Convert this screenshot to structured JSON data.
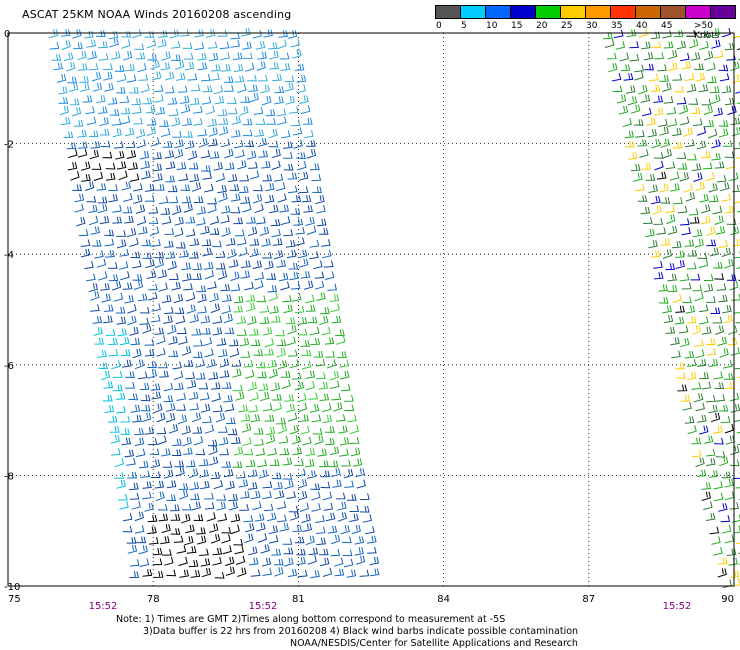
{
  "title": "ASCAT 25KM NOAA Winds 20160208 ascending",
  "legend": {
    "unit_label": ">50 Knots",
    "ticks": [
      "0",
      "5",
      "10",
      "15",
      "20",
      "25",
      "30",
      "35",
      "40",
      "45"
    ],
    "colors": [
      "#555555",
      "#00ccff",
      "#0066ff",
      "#0000cc",
      "#00cc00",
      "#ffcc00",
      "#ff9900",
      "#ff3300",
      "#cc6600",
      "#a0522d",
      "#cc00cc",
      "#660099"
    ]
  },
  "axes": {
    "lon_labels": [
      "75",
      "78",
      "81",
      "84",
      "87",
      "90"
    ],
    "lat_labels": [
      "0",
      "-2",
      "-4",
      "-6",
      "-8",
      "-10"
    ]
  },
  "pass_times": [
    "15:52",
    "15:52",
    "15:52"
  ],
  "notes": {
    "line1": "Note: 1) Times are GMT 2)Times along bottom correspond to measurement at -5S",
    "line2": "3)Data buffer is 22 hrs from 20160208 4) Black wind barbs indicate possible contamination",
    "line3": "NOAA/NESDIS/Center for Satellite Applications and Research"
  }
}
